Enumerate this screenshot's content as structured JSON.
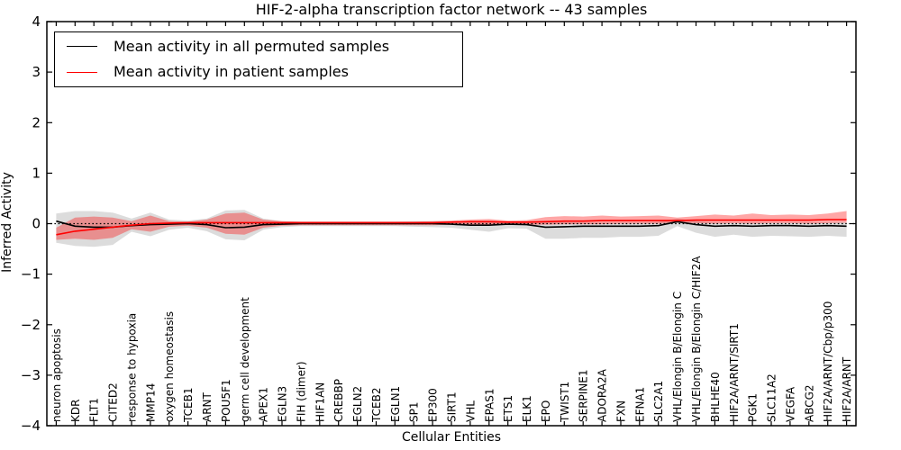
{
  "chart_data": {
    "type": "line",
    "title": "HIF-2-alpha transcription factor network -- 43 samples",
    "xlabel": "Cellular Entities",
    "ylabel": "Inferred Activity",
    "ylim": [
      -4,
      4
    ],
    "yticks": [
      -4,
      -3,
      -2,
      -1,
      0,
      1,
      2,
      3,
      4
    ],
    "grid": false,
    "legend_position": "upper left",
    "zero_line": {
      "style": "dotted",
      "color": "#000000"
    },
    "categories": [
      "neuron apoptosis",
      "KDR",
      "FLT1",
      "CITED2",
      "response to hypoxia",
      "MMP14",
      "oxygen homeostasis",
      "TCEB1",
      "ARNT",
      "POU5F1",
      "germ cell development",
      "APEX1",
      "EGLN3",
      "FIH (dimer)",
      "HIF1AN",
      "CREBBP",
      "EGLN2",
      "TCEB2",
      "EGLN1",
      "SP1",
      "EP300",
      "SIRT1",
      "VHL",
      "EPAS1",
      "ETS1",
      "ELK1",
      "EPO",
      "TWIST1",
      "SERPINE1",
      "ADORA2A",
      "FXN",
      "EFNA1",
      "SLC2A1",
      "VHL/Elongin B/Elongin C",
      "VHL/Elongin B/Elongin C/HIF2A",
      "BHLHE40",
      "HIF2A/ARNT/SIRT1",
      "PGK1",
      "SLC11A2",
      "VEGFA",
      "ABCG2",
      "HIF2A/ARNT/Cbp/p300",
      "HIF2A/ARNT"
    ],
    "series": [
      {
        "name": "Mean activity in all permuted samples",
        "color": "#000000",
        "values": [
          0.05,
          -0.05,
          -0.07,
          -0.07,
          -0.04,
          -0.02,
          -0.01,
          0.0,
          -0.02,
          -0.08,
          -0.07,
          -0.02,
          -0.01,
          0.0,
          0.0,
          0.0,
          0.0,
          0.0,
          0.0,
          0.0,
          0.0,
          -0.01,
          -0.03,
          -0.03,
          -0.01,
          -0.02,
          -0.07,
          -0.06,
          -0.05,
          -0.05,
          -0.05,
          -0.05,
          -0.04,
          0.04,
          -0.02,
          -0.05,
          -0.04,
          -0.05,
          -0.04,
          -0.04,
          -0.05,
          -0.04,
          -0.05
        ]
      },
      {
        "name": "Mean activity in patient samples",
        "color": "#ff0000",
        "values": [
          -0.22,
          -0.15,
          -0.11,
          -0.07,
          -0.03,
          0.0,
          0.01,
          0.02,
          0.02,
          0.02,
          0.02,
          0.02,
          0.02,
          0.02,
          0.02,
          0.02,
          0.02,
          0.02,
          0.02,
          0.02,
          0.02,
          0.03,
          0.04,
          0.04,
          0.03,
          0.03,
          0.04,
          0.05,
          0.05,
          0.06,
          0.06,
          0.06,
          0.06,
          0.06,
          0.07,
          0.07,
          0.07,
          0.07,
          0.07,
          0.07,
          0.07,
          0.08,
          0.08
        ]
      }
    ],
    "bands": [
      {
        "name": "permuted-samples-range-band",
        "color": "#8c8c8c",
        "opacity": 0.3,
        "upper": [
          0.2,
          0.25,
          0.25,
          0.22,
          0.1,
          0.22,
          0.08,
          0.06,
          0.1,
          0.26,
          0.27,
          0.1,
          0.05,
          0.04,
          0.04,
          0.04,
          0.04,
          0.04,
          0.04,
          0.05,
          0.05,
          0.05,
          0.05,
          0.05,
          0.04,
          0.05,
          0.03,
          0.03,
          0.02,
          0.02,
          0.02,
          0.02,
          0.03,
          0.1,
          0.05,
          0.02,
          0.02,
          0.02,
          0.02,
          0.02,
          0.02,
          0.02,
          0.03
        ],
        "lower": [
          -0.38,
          -0.44,
          -0.46,
          -0.42,
          -0.16,
          -0.25,
          -0.12,
          -0.08,
          -0.15,
          -0.31,
          -0.33,
          -0.12,
          -0.07,
          -0.05,
          -0.05,
          -0.05,
          -0.05,
          -0.05,
          -0.05,
          -0.06,
          -0.07,
          -0.08,
          -0.12,
          -0.16,
          -0.09,
          -0.1,
          -0.3,
          -0.3,
          -0.28,
          -0.28,
          -0.26,
          -0.26,
          -0.24,
          -0.05,
          -0.18,
          -0.26,
          -0.22,
          -0.26,
          -0.24,
          -0.25,
          -0.26,
          -0.24,
          -0.26
        ]
      },
      {
        "name": "patient-samples-range-band",
        "color": "#ff0000",
        "opacity": 0.35,
        "upper": [
          -0.08,
          0.12,
          0.14,
          0.12,
          0.05,
          0.16,
          0.05,
          0.04,
          0.08,
          0.2,
          0.22,
          0.08,
          0.05,
          0.04,
          0.04,
          0.04,
          0.04,
          0.04,
          0.04,
          0.04,
          0.05,
          0.06,
          0.08,
          0.09,
          0.06,
          0.07,
          0.13,
          0.15,
          0.14,
          0.16,
          0.14,
          0.15,
          0.16,
          0.12,
          0.15,
          0.18,
          0.16,
          0.2,
          0.17,
          0.18,
          0.17,
          0.2,
          0.25
        ],
        "lower": [
          -0.32,
          -0.3,
          -0.32,
          -0.28,
          -0.11,
          -0.16,
          -0.06,
          -0.04,
          -0.08,
          -0.2,
          -0.22,
          -0.08,
          -0.04,
          -0.03,
          -0.03,
          -0.03,
          -0.03,
          -0.03,
          -0.03,
          -0.03,
          -0.03,
          -0.02,
          -0.02,
          -0.02,
          -0.02,
          -0.02,
          -0.02,
          -0.01,
          -0.01,
          -0.01,
          0.0,
          0.0,
          0.0,
          0.02,
          0.01,
          0.0,
          0.01,
          0.0,
          0.01,
          0.01,
          0.0,
          0.01,
          0.02
        ]
      }
    ]
  }
}
